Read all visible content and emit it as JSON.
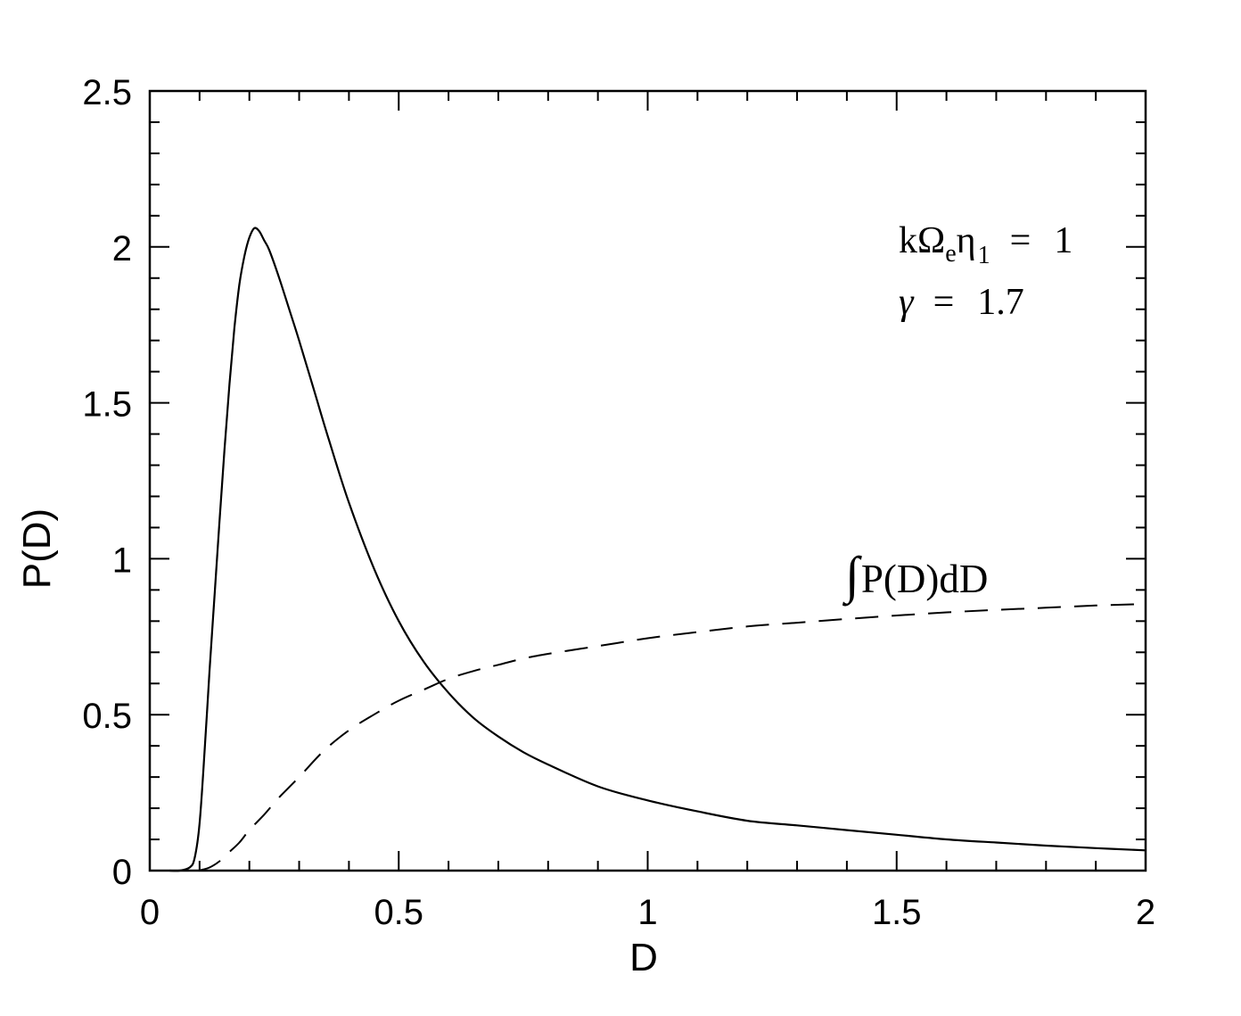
{
  "figure": {
    "background": "#ffffff",
    "line_color": "#000000"
  },
  "annotations": {
    "param1": {
      "pre": "kΩ",
      "sub1": "e",
      "mid": "η",
      "sub2": "1",
      "eq": "=",
      "value": "1"
    },
    "param2": {
      "symbol": "γ",
      "eq": "=",
      "value": "1.7"
    },
    "curve_label_integral_sign": "∫",
    "curve_label_rest": "P(D)dD"
  },
  "chart_data": {
    "type": "line",
    "title": "",
    "xlabel": "D",
    "ylabel": "P(D)",
    "xlim": [
      0,
      2
    ],
    "ylim": [
      0,
      2.5
    ],
    "grid": false,
    "legend_position": "none",
    "x_axis": {
      "major_ticks": [
        0,
        0.5,
        1,
        1.5,
        2
      ],
      "tick_labels": [
        "0",
        "0.5",
        "1",
        "1.5",
        "2"
      ],
      "minor_step": 0.1
    },
    "y_axis": {
      "major_ticks": [
        0,
        0.5,
        1,
        1.5,
        2,
        2.5
      ],
      "tick_labels": [
        "0",
        "0.5",
        "1",
        "1.5",
        "2",
        "2.5"
      ],
      "minor_step": 0.1
    },
    "series": [
      {
        "name": "P(D)",
        "style": "solid",
        "peak": {
          "x": 0.21,
          "y": 2.06
        },
        "x": [
          0.04,
          0.06,
          0.08,
          0.09,
          0.1,
          0.11,
          0.12,
          0.13,
          0.14,
          0.15,
          0.16,
          0.17,
          0.18,
          0.19,
          0.2,
          0.21,
          0.22,
          0.23,
          0.24,
          0.26,
          0.28,
          0.3,
          0.33,
          0.36,
          0.4,
          0.45,
          0.5,
          0.55,
          0.6,
          0.65,
          0.7,
          0.75,
          0.8,
          0.9,
          1.0,
          1.1,
          1.2,
          1.3,
          1.4,
          1.5,
          1.6,
          1.7,
          1.8,
          1.9,
          2.0
        ],
        "y": [
          0.0,
          0.0,
          0.01,
          0.04,
          0.15,
          0.38,
          0.64,
          0.88,
          1.12,
          1.35,
          1.56,
          1.74,
          1.88,
          1.97,
          2.03,
          2.06,
          2.05,
          2.02,
          1.99,
          1.9,
          1.8,
          1.7,
          1.54,
          1.38,
          1.18,
          0.97,
          0.8,
          0.67,
          0.57,
          0.49,
          0.43,
          0.38,
          0.34,
          0.27,
          0.225,
          0.19,
          0.16,
          0.145,
          0.13,
          0.115,
          0.1,
          0.09,
          0.08,
          0.072,
          0.065
        ]
      },
      {
        "name": "∫P(D)dD",
        "style": "dashed",
        "x": [
          0.1,
          0.12,
          0.14,
          0.16,
          0.18,
          0.2,
          0.23,
          0.26,
          0.3,
          0.35,
          0.4,
          0.45,
          0.5,
          0.55,
          0.6,
          0.65,
          0.7,
          0.75,
          0.8,
          0.9,
          1.0,
          1.1,
          1.2,
          1.3,
          1.4,
          1.5,
          1.6,
          1.7,
          1.8,
          1.9,
          2.0
        ],
        "y": [
          0.001,
          0.01,
          0.03,
          0.06,
          0.09,
          0.13,
          0.18,
          0.235,
          0.3,
          0.385,
          0.45,
          0.5,
          0.545,
          0.58,
          0.615,
          0.64,
          0.66,
          0.68,
          0.695,
          0.72,
          0.745,
          0.765,
          0.783,
          0.795,
          0.807,
          0.818,
          0.828,
          0.836,
          0.843,
          0.85,
          0.855
        ]
      }
    ]
  }
}
